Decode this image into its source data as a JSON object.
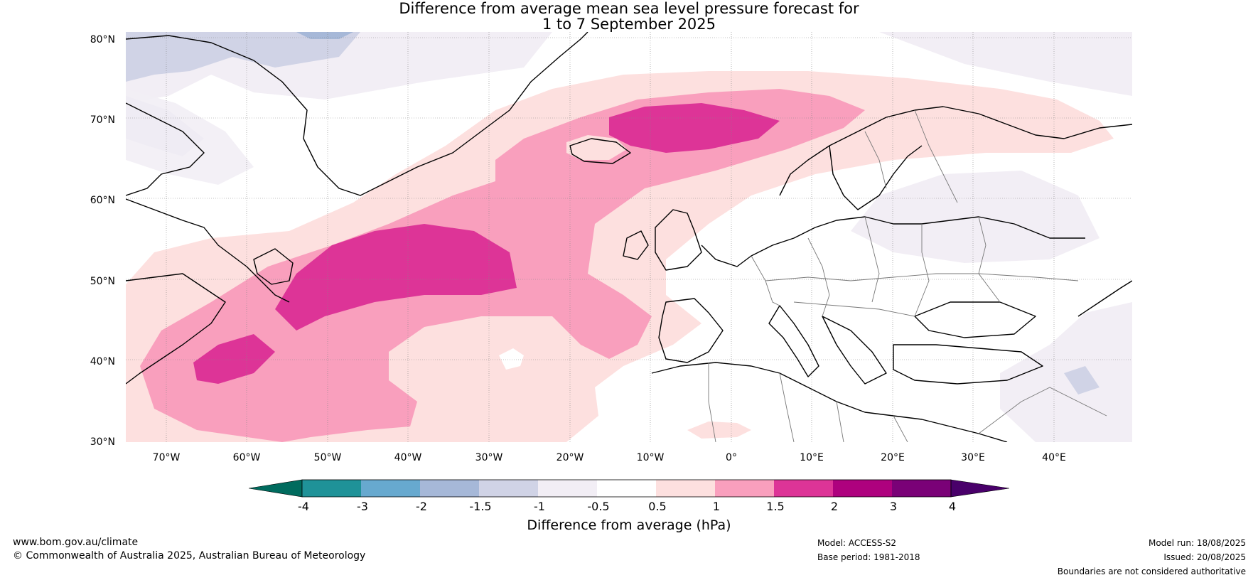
{
  "title": {
    "line1": "Difference from average mean sea level pressure forecast for",
    "line2": "1 to 7 September 2025"
  },
  "map": {
    "lat_labels": [
      "80°N",
      "70°N",
      "60°N",
      "50°N",
      "40°N",
      "30°N"
    ],
    "lon_labels": [
      "70°W",
      "60°W",
      "50°W",
      "40°W",
      "30°W",
      "20°W",
      "10°W",
      "0°",
      "10°E",
      "20°E",
      "30°E",
      "40°E"
    ]
  },
  "colorbar": {
    "label": "Difference from average (hPa)",
    "ticks": [
      "-4",
      "-3",
      "-2",
      "-1.5",
      "-1",
      "-0.5",
      "0.5",
      "1",
      "1.5",
      "2",
      "3",
      "4"
    ],
    "colors": [
      "#006b5e",
      "#1f9298",
      "#67a9cf",
      "#a6b8d8",
      "#d0d3e6",
      "#f2eef5",
      "#ffffff",
      "#fde0df",
      "#f99fbd",
      "#dd3497",
      "#ae017e",
      "#7a0177",
      "#49006a"
    ]
  },
  "footer": {
    "website": "www.bom.gov.au/climate",
    "copyright": "© Commonwealth of Australia 2025, Australian Bureau of Meteorology",
    "model": "Model: ACCESS-S2",
    "base_period": "Base period: 1981-2018",
    "model_run": "Model run: 18/08/2025",
    "issued": "Issued: 20/08/2025",
    "disclaimer": "Boundaries are not considered authoritative"
  }
}
